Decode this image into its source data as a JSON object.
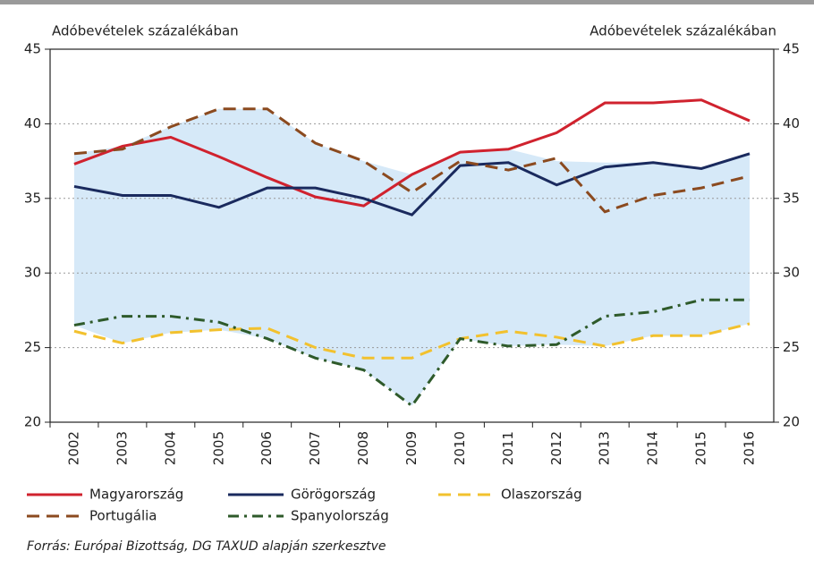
{
  "chart_data": {
    "type": "line",
    "y_label": "Adóbevételek százalékában",
    "y2_label": "Adóbevételek százalékában",
    "categories": [
      "2002",
      "2003",
      "2004",
      "2005",
      "2006",
      "2007",
      "2008",
      "2009",
      "2010",
      "2011",
      "2012",
      "2013",
      "2014",
      "2015",
      "2016"
    ],
    "band": {
      "color": "#d6e9f8",
      "upper": [
        38.0,
        38.5,
        39.8,
        41.0,
        41.0,
        38.7,
        37.5,
        36.6,
        38.1,
        38.3,
        37.5,
        37.4,
        37.4,
        37.0,
        38.0
      ],
      "lower": [
        26.5,
        25.3,
        26.0,
        26.2,
        25.6,
        24.3,
        23.5,
        21.1,
        25.6,
        25.1,
        25.2,
        25.1,
        25.8,
        25.8,
        26.6
      ]
    },
    "series": [
      {
        "name": "Magyarország",
        "color": "#d0222e",
        "style": "solid",
        "values": [
          37.3,
          38.5,
          39.1,
          37.8,
          36.4,
          35.1,
          34.5,
          36.6,
          38.1,
          38.3,
          39.4,
          41.4,
          41.4,
          41.6,
          40.2
        ]
      },
      {
        "name": "Görögország",
        "color": "#1a2a5e",
        "style": "solid",
        "values": [
          35.8,
          35.2,
          35.2,
          34.4,
          35.7,
          35.7,
          35.0,
          33.9,
          37.2,
          37.4,
          35.9,
          37.1,
          37.4,
          37.0,
          38.0
        ]
      },
      {
        "name": "Olaszország",
        "color": "#f2c12e",
        "style": "dashed",
        "values": [
          26.1,
          25.3,
          26.0,
          26.2,
          26.3,
          25.0,
          24.3,
          24.3,
          25.6,
          26.1,
          25.7,
          25.1,
          25.8,
          25.8,
          26.6
        ]
      },
      {
        "name": "Portugália",
        "color": "#8b4a1f",
        "style": "dashed",
        "values": [
          38.0,
          38.3,
          39.8,
          41.0,
          41.0,
          38.7,
          37.5,
          35.4,
          37.5,
          36.9,
          37.7,
          34.1,
          35.2,
          35.7,
          36.5
        ]
      },
      {
        "name": "Spanyolország",
        "color": "#2e5a2a",
        "style": "dashdot",
        "values": [
          26.5,
          27.1,
          27.1,
          26.7,
          25.6,
          24.3,
          23.5,
          21.1,
          25.6,
          25.1,
          25.2,
          27.1,
          27.4,
          28.2,
          28.2
        ]
      }
    ],
    "ylim": [
      20,
      45
    ],
    "yticks": [
      20,
      25,
      30,
      35,
      40,
      45
    ],
    "y2lim": [
      20,
      45
    ],
    "y2ticks": [
      20,
      25,
      30,
      35,
      40,
      45
    ],
    "grid": true,
    "source": "Forrás: Európai Bizottság, DG TAXUD alapján szerkesztve"
  }
}
